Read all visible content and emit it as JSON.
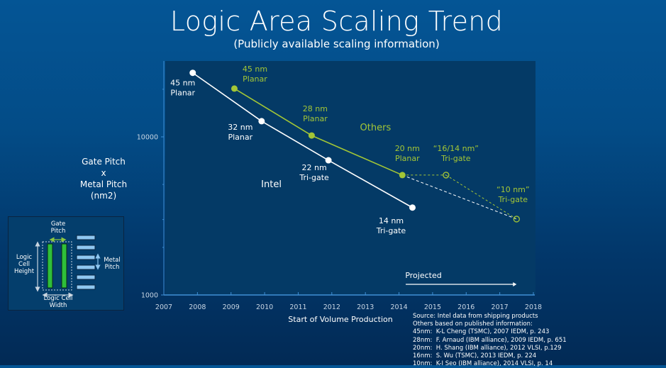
{
  "header": {
    "title": "Logic Area Scaling Trend",
    "subtitle": "(Publicly available scaling information)"
  },
  "chart_data": {
    "type": "line",
    "title": "Logic Area Scaling Trend",
    "subtitle": "(Publicly available scaling information)",
    "xlabel": "Start of Volume Production",
    "ylabel": [
      "Gate Pitch",
      "x",
      "Metal Pitch",
      "(nm2)"
    ],
    "xlim": [
      2007,
      2018
    ],
    "ylim": [
      1000,
      30000
    ],
    "yscale": "log",
    "x_ticks": [
      "2007",
      "2008",
      "2009",
      "2010",
      "2011",
      "2012",
      "2013",
      "2014",
      "2015",
      "2016",
      "2017",
      "2018"
    ],
    "y_tick_labels": [
      {
        "value": 1000,
        "label": "1000"
      },
      {
        "value": 10000,
        "label": "10000"
      }
    ],
    "y_minor_ticks": [
      2000,
      3000,
      5000,
      20000
    ],
    "grid": false,
    "series": [
      {
        "name": "Intel",
        "color": "#ffffff",
        "points": [
          {
            "x": 2007.86,
            "y": 25400,
            "label": [
              "45 nm",
              "Planar"
            ],
            "style": "solid"
          },
          {
            "x": 2009.91,
            "y": 12560,
            "label": [
              "32 nm",
              "Planar"
            ],
            "style": "solid"
          },
          {
            "x": 2011.9,
            "y": 7110,
            "label": [
              "22 nm",
              "Tri-gate"
            ],
            "style": "solid"
          },
          {
            "x": 2014.4,
            "y": 3570,
            "label": [
              "14 nm",
              "Tri-gate"
            ],
            "style": "solid"
          }
        ]
      },
      {
        "name": "Others",
        "color": "#a3c636",
        "points": [
          {
            "x": 2009.1,
            "y": 20200,
            "label": [
              "45 nm",
              "Planar"
            ],
            "style": "solid"
          },
          {
            "x": 2011.4,
            "y": 10200,
            "label": [
              "28 nm",
              "Planar"
            ],
            "style": "solid"
          },
          {
            "x": 2014.1,
            "y": 5730,
            "label": [
              "20 nm",
              "Planar"
            ],
            "style": "solid"
          },
          {
            "x": 2015.4,
            "y": 5730,
            "label": [
              "“16/14 nm”",
              "Tri-gate"
            ],
            "style": "projected"
          },
          {
            "x": 2017.5,
            "y": 3020,
            "label": [
              "“10 nm”",
              "Tri-gate"
            ],
            "style": "projected"
          }
        ]
      }
    ],
    "extra_lines": [
      {
        "name": "projection-20nm-to-10nm",
        "color": "#ffffff",
        "style": "dashed",
        "from": {
          "x": 2014.1,
          "y": 5730
        },
        "to": {
          "x": 2017.5,
          "y": 3020
        }
      }
    ],
    "annotations": [
      {
        "text": "Intel",
        "x": 2010.2,
        "y": 4800,
        "color": "#ffffff"
      },
      {
        "text": "Others",
        "x": 2013.3,
        "y": 11000,
        "color": "#a3c636"
      },
      {
        "text": "Projected",
        "x_from": 2014.2,
        "x_to": 2017.5,
        "arrow": true,
        "color": "#ffffff"
      }
    ]
  },
  "diagram": {
    "gate_pitch": [
      "Gate",
      "Pitch"
    ],
    "logic_cell_height": [
      "Logic",
      "Cell",
      "Height"
    ],
    "metal_pitch": [
      "Metal",
      "Pitch"
    ],
    "logic_cell_width": [
      "Logic Cell",
      "Width"
    ]
  },
  "source": {
    "lines": [
      "Source: Intel data from shipping products",
      "Others based on published information:",
      "45nm:  K-L Cheng (TSMC), 2007 IEDM, p. 243",
      "28nm:  F. Arnaud (IBM alliance), 2009 IEDM, p. 651",
      "20nm:  H. Shang (IBM alliance), 2012 VLSI, p.129",
      "16nm:  S. Wu (TSMC), 2013 IEDM, p. 224",
      "10nm:  K-I Seo (IBM alliance), 2014 VLSI, p. 14"
    ]
  }
}
